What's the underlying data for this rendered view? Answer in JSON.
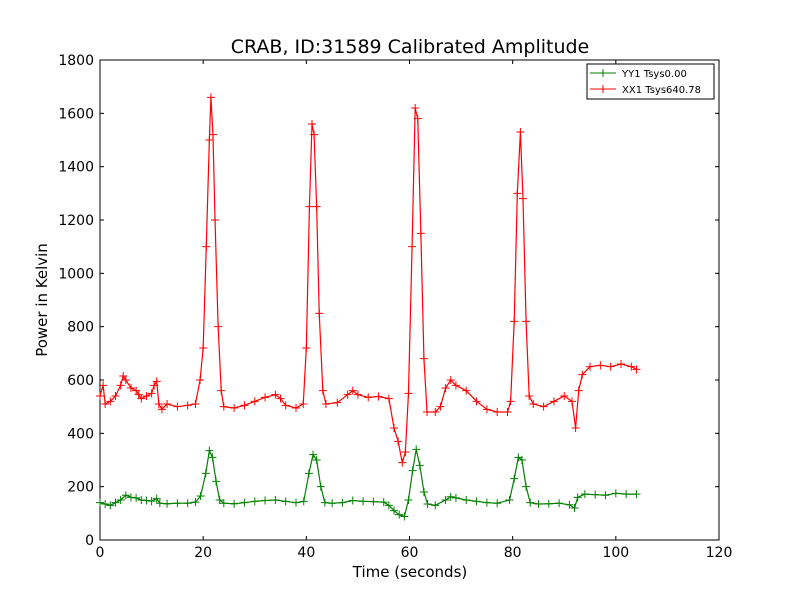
{
  "chart_data": {
    "type": "line",
    "title": "CRAB, ID:31589 Calibrated Amplitude",
    "xlabel": "Time (seconds)",
    "ylabel": "Power in Kelvin",
    "xlim": [
      0,
      120
    ],
    "ylim": [
      0,
      1800
    ],
    "xticks": [
      0,
      20,
      40,
      60,
      80,
      100,
      120
    ],
    "yticks": [
      0,
      200,
      400,
      600,
      800,
      1000,
      1200,
      1400,
      1600,
      1800
    ],
    "grid": false,
    "legend_position": "top-right",
    "series": [
      {
        "name": "YY1 Tsys0.00",
        "color": "#008000",
        "marker": "+",
        "points": [
          [
            0,
            140
          ],
          [
            1,
            135
          ],
          [
            2,
            130
          ],
          [
            3,
            140
          ],
          [
            4,
            150
          ],
          [
            5,
            168
          ],
          [
            6,
            160
          ],
          [
            7,
            158
          ],
          [
            8,
            150
          ],
          [
            9,
            148
          ],
          [
            10,
            146
          ],
          [
            11,
            155
          ],
          [
            11.6,
            138
          ],
          [
            13,
            136
          ],
          [
            15,
            138
          ],
          [
            17,
            138
          ],
          [
            18.5,
            142
          ],
          [
            19.5,
            165
          ],
          [
            20.5,
            250
          ],
          [
            21.2,
            335
          ],
          [
            21.8,
            310
          ],
          [
            22.5,
            220
          ],
          [
            23.2,
            150
          ],
          [
            24,
            138
          ],
          [
            26,
            136
          ],
          [
            28,
            140
          ],
          [
            30,
            145
          ],
          [
            32,
            148
          ],
          [
            34,
            150
          ],
          [
            36,
            145
          ],
          [
            38,
            140
          ],
          [
            39.5,
            145
          ],
          [
            40.5,
            250
          ],
          [
            41.3,
            320
          ],
          [
            42,
            300
          ],
          [
            42.8,
            200
          ],
          [
            43.6,
            140
          ],
          [
            45,
            138
          ],
          [
            47,
            140
          ],
          [
            49,
            148
          ],
          [
            51,
            145
          ],
          [
            53,
            144
          ],
          [
            55,
            142
          ],
          [
            56,
            130
          ],
          [
            57,
            110
          ],
          [
            58,
            95
          ],
          [
            59,
            88
          ],
          [
            59.8,
            150
          ],
          [
            60.6,
            260
          ],
          [
            61.3,
            340
          ],
          [
            62,
            280
          ],
          [
            62.8,
            180
          ],
          [
            63.5,
            135
          ],
          [
            65,
            130
          ],
          [
            67,
            150
          ],
          [
            68,
            162
          ],
          [
            69,
            158
          ],
          [
            71,
            150
          ],
          [
            73,
            145
          ],
          [
            75,
            140
          ],
          [
            77,
            138
          ],
          [
            79.4,
            150
          ],
          [
            80.3,
            230
          ],
          [
            81.1,
            310
          ],
          [
            81.8,
            300
          ],
          [
            82.6,
            200
          ],
          [
            83.4,
            140
          ],
          [
            85,
            135
          ],
          [
            87,
            136
          ],
          [
            89,
            138
          ],
          [
            91,
            132
          ],
          [
            92,
            120
          ],
          [
            92.6,
            160
          ],
          [
            94,
            172
          ],
          [
            96,
            170
          ],
          [
            98,
            168
          ],
          [
            100,
            175
          ],
          [
            102,
            172
          ],
          [
            104,
            172
          ]
        ]
      },
      {
        "name": "XX1 Tsys640.78",
        "color": "#ff0000",
        "marker": "+",
        "points": [
          [
            0,
            540
          ],
          [
            0.6,
            580
          ],
          [
            1,
            510
          ],
          [
            2,
            520
          ],
          [
            3,
            540
          ],
          [
            4,
            580
          ],
          [
            4.5,
            615
          ],
          [
            5,
            600
          ],
          [
            6,
            570
          ],
          [
            7,
            560
          ],
          [
            7.5,
            545
          ],
          [
            8,
            530
          ],
          [
            9,
            540
          ],
          [
            10,
            550
          ],
          [
            10.5,
            580
          ],
          [
            11,
            595
          ],
          [
            11.4,
            510
          ],
          [
            12,
            490
          ],
          [
            13,
            510
          ],
          [
            15,
            500
          ],
          [
            17,
            505
          ],
          [
            18.5,
            510
          ],
          [
            19.4,
            600
          ],
          [
            20,
            720
          ],
          [
            20.6,
            1100
          ],
          [
            21.2,
            1500
          ],
          [
            21.5,
            1660
          ],
          [
            21.9,
            1520
          ],
          [
            22.3,
            1200
          ],
          [
            22.9,
            800
          ],
          [
            23.5,
            560
          ],
          [
            24,
            500
          ],
          [
            26,
            495
          ],
          [
            28,
            505
          ],
          [
            30,
            520
          ],
          [
            32,
            535
          ],
          [
            34,
            545
          ],
          [
            35,
            530
          ],
          [
            36,
            505
          ],
          [
            38,
            495
          ],
          [
            39.4,
            510
          ],
          [
            40,
            720
          ],
          [
            40.6,
            1250
          ],
          [
            41.1,
            1560
          ],
          [
            41.5,
            1520
          ],
          [
            42,
            1250
          ],
          [
            42.5,
            850
          ],
          [
            43.2,
            560
          ],
          [
            43.8,
            510
          ],
          [
            46,
            515
          ],
          [
            48,
            545
          ],
          [
            49,
            560
          ],
          [
            50,
            545
          ],
          [
            52,
            535
          ],
          [
            54,
            538
          ],
          [
            56,
            530
          ],
          [
            57,
            420
          ],
          [
            57.8,
            370
          ],
          [
            58.6,
            290
          ],
          [
            59.2,
            330
          ],
          [
            59.8,
            550
          ],
          [
            60.5,
            1100
          ],
          [
            61.1,
            1620
          ],
          [
            61.6,
            1580
          ],
          [
            62.2,
            1150
          ],
          [
            62.8,
            680
          ],
          [
            63.4,
            480
          ],
          [
            65,
            480
          ],
          [
            66,
            500
          ],
          [
            67,
            570
          ],
          [
            68,
            600
          ],
          [
            69,
            580
          ],
          [
            71,
            560
          ],
          [
            73,
            520
          ],
          [
            75,
            490
          ],
          [
            77,
            480
          ],
          [
            79,
            480
          ],
          [
            79.6,
            520
          ],
          [
            80.3,
            820
          ],
          [
            80.9,
            1300
          ],
          [
            81.5,
            1530
          ],
          [
            82,
            1280
          ],
          [
            82.6,
            820
          ],
          [
            83.2,
            540
          ],
          [
            84,
            510
          ],
          [
            86,
            500
          ],
          [
            88,
            520
          ],
          [
            90,
            540
          ],
          [
            91.5,
            520
          ],
          [
            92.2,
            420
          ],
          [
            92.8,
            560
          ],
          [
            93.5,
            620
          ],
          [
            95,
            650
          ],
          [
            97,
            655
          ],
          [
            99,
            650
          ],
          [
            101,
            660
          ],
          [
            103,
            650
          ],
          [
            104,
            640
          ]
        ]
      }
    ]
  }
}
